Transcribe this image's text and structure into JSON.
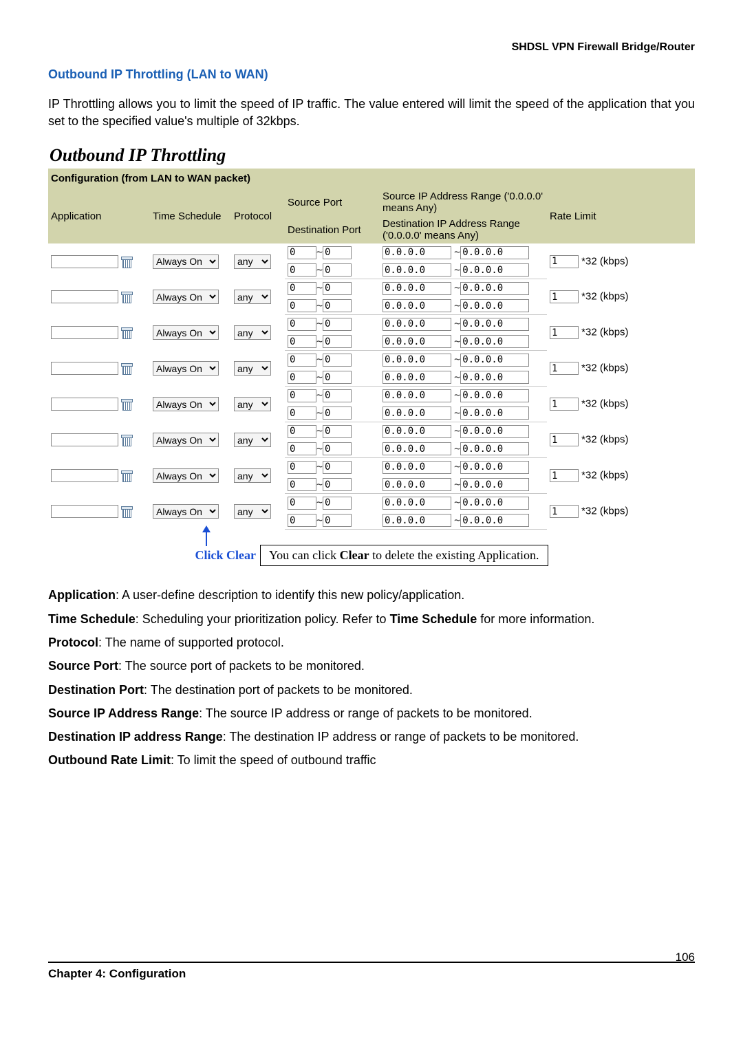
{
  "header_right": "SHDSL VPN Firewall Bridge/Router",
  "section_title": "Outbound IP Throttling (LAN to WAN)",
  "intro": "IP Throttling allows you to limit the speed of IP traffic. The value entered will limit the speed of the application that you set to the specified value's multiple of 32kbps.",
  "panel_title": "Outbound IP Throttling",
  "config_label": "Configuration (from LAN to WAN packet)",
  "columns": {
    "application": "Application",
    "time_schedule": "Time Schedule",
    "protocol": "Protocol",
    "source_port": "Source Port",
    "destination_port": "Destination Port",
    "src_ip_range": "Source IP Address Range ('0.0.0.0' means Any)",
    "dst_ip_range": "Destination IP Address Range ('0.0.0.0' means Any)",
    "rate_limit": "Rate Limit"
  },
  "time_option": "Always On",
  "proto_option": "any",
  "port_val": "0",
  "ip_val": "0.0.0.0",
  "rate_val": "1",
  "rate_unit": "*32 (kbps)",
  "tilde": "~",
  "callout": {
    "label": "Click Clear",
    "text_pre": "You can click ",
    "text_bold": "Clear",
    "text_post": " to delete the existing Application."
  },
  "descriptions": [
    {
      "b": "Application",
      "t": ": A user-define description to identify this new policy/application."
    },
    {
      "b": "Time Schedule",
      "t": ": Scheduling your prioritization policy. Refer to ",
      "b2": "Time Schedule",
      "t2": " for more information."
    },
    {
      "b": "Protocol",
      "t": ": The name of supported protocol."
    },
    {
      "b": "Source Port",
      "t": ": The source port of packets to be monitored."
    },
    {
      "b": "Destination Port",
      "t": ": The destination port of packets to be monitored."
    },
    {
      "b": "Source IP Address Range",
      "t": ": The source IP address or range of packets to be monitored."
    },
    {
      "b": "Destination IP address Range",
      "t": ": The destination IP address or range of packets to be monitored."
    },
    {
      "b": "Outbound Rate Limit",
      "t": ": To limit the speed of outbound traffic"
    }
  ],
  "footer": {
    "left": "Chapter 4: Configuration",
    "page": "106"
  },
  "row_count": 8,
  "colors": {
    "header_bg": "#d2d4ac",
    "link_blue": "#1a5fb4",
    "callout_blue": "#1a4fd4"
  }
}
